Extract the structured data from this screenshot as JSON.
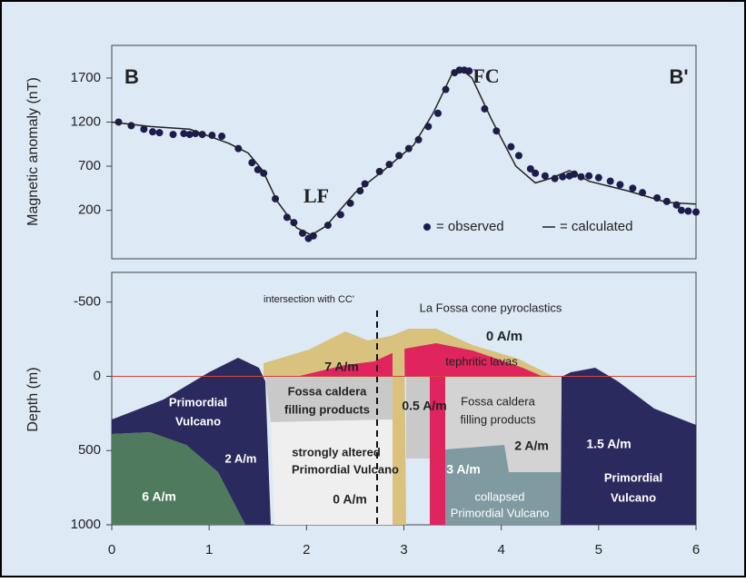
{
  "chart_data": [
    {
      "type": "scatter",
      "ylabel": "Magnetic anomaly (nT)",
      "xlim": [
        0,
        6
      ],
      "ylim": [
        -350,
        2070
      ],
      "yticks": [
        200,
        700,
        1200,
        1700
      ],
      "annotations": [
        "B",
        "LF",
        "FC",
        "B'"
      ],
      "series": [
        {
          "name": "= observed",
          "type": "scatter",
          "color": "#1c1c4e",
          "x": [
            0.07,
            0.2,
            0.33,
            0.42,
            0.49,
            0.63,
            0.74,
            0.8,
            0.86,
            0.93,
            1.03,
            1.13,
            1.3,
            1.44,
            1.5,
            1.56,
            1.68,
            1.8,
            1.87,
            1.96,
            2.02,
            2.07,
            2.22,
            2.35,
            2.45,
            2.55,
            2.6,
            2.75,
            2.85,
            2.95,
            3.05,
            3.15,
            3.25,
            3.35,
            3.43,
            3.52,
            3.57,
            3.62,
            3.67,
            3.83,
            3.95,
            4.1,
            4.18,
            4.3,
            4.35,
            4.45,
            4.55,
            4.63,
            4.7,
            4.75,
            4.82,
            4.9,
            5.0,
            5.12,
            5.22,
            5.35,
            5.45,
            5.6,
            5.7,
            5.8,
            5.85,
            5.92,
            6.0
          ],
          "values": [
            1200,
            1160,
            1120,
            1090,
            1080,
            1060,
            1070,
            1060,
            1070,
            1060,
            1050,
            1040,
            900,
            740,
            660,
            620,
            330,
            120,
            60,
            -60,
            -120,
            -90,
            30,
            150,
            280,
            420,
            500,
            640,
            720,
            820,
            900,
            1000,
            1150,
            1300,
            1570,
            1760,
            1790,
            1790,
            1780,
            1350,
            1100,
            920,
            820,
            670,
            620,
            590,
            560,
            580,
            590,
            610,
            580,
            590,
            570,
            530,
            490,
            450,
            400,
            340,
            300,
            260,
            200,
            190,
            180
          ]
        },
        {
          "name": "= calculated",
          "type": "line",
          "color": "#222222",
          "x": [
            0,
            0.4,
            0.8,
            1.2,
            1.4,
            1.55,
            1.7,
            1.9,
            2.05,
            2.2,
            2.5,
            2.8,
            3.1,
            3.3,
            3.5,
            3.6,
            3.7,
            3.9,
            4.15,
            4.35,
            4.5,
            4.7,
            4.9,
            5.3,
            5.7,
            6.0
          ],
          "values": [
            1200,
            1150,
            1120,
            960,
            850,
            650,
            300,
            0,
            -80,
            20,
            400,
            660,
            940,
            1300,
            1760,
            1790,
            1700,
            1230,
            700,
            510,
            560,
            650,
            530,
            420,
            290,
            270
          ]
        }
      ]
    },
    {
      "type": "section",
      "ylabel": "Depth (m)",
      "xlim": [
        0,
        6
      ],
      "ylim": [
        -700,
        1000
      ],
      "yticks": [
        -500,
        0,
        500,
        1000
      ],
      "xticks": [
        0,
        1,
        2,
        3,
        4,
        5,
        6
      ],
      "labels": [
        "intersection with CC'",
        "La Fossa cone pyroclastics",
        "0 A/m",
        "7 A/m",
        "tephritic lavas",
        "Fossa caldera",
        "filling products",
        "0.5 A/m",
        "Fossa caldera",
        "filling products",
        "Primordial",
        "Vulcano",
        "2 A/m",
        "strongly altered",
        "Primordial Vulcano",
        "0 A/m",
        "2 A/m",
        "3 A/m",
        "collapsed",
        "Primordial Vulcano",
        "1.5 A/m",
        "Primordial",
        "Vulcano",
        "6 A/m"
      ]
    }
  ]
}
